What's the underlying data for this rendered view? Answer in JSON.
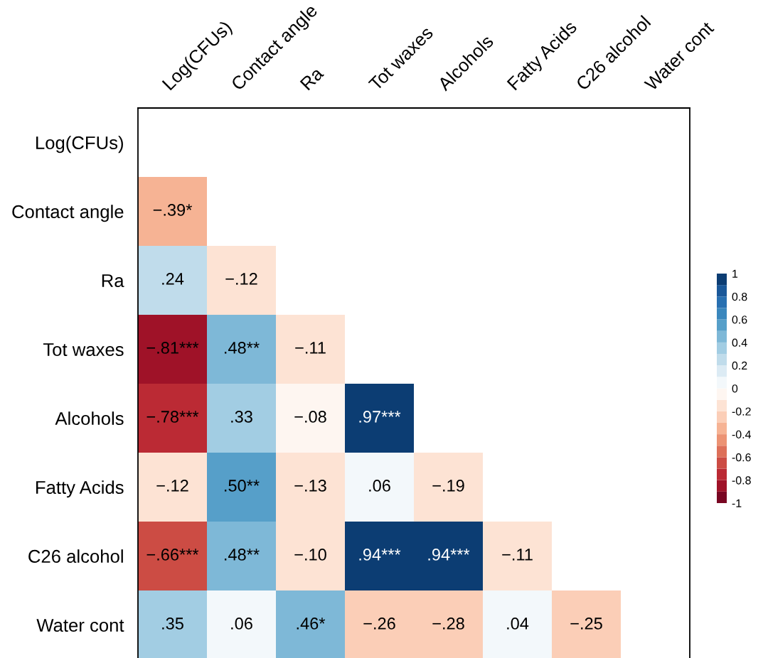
{
  "chart_data": {
    "type": "heatmap",
    "categories": [
      "Log(CFUs)",
      "Contact angle",
      "Ra",
      "Tot waxes",
      "Alcohols",
      "Fatty Acids",
      "C26 alcohol",
      "Water cont"
    ],
    "y_categories": [
      "Log(CFUs)",
      "Contact angle",
      "Ra",
      "Tot waxes",
      "Alcohols",
      "Fatty Acids",
      "C26 alcohol",
      "Water cont"
    ],
    "cells": [
      [
        null,
        null,
        null,
        null,
        null,
        null,
        null,
        null
      ],
      [
        -0.39,
        null,
        null,
        null,
        null,
        null,
        null,
        null
      ],
      [
        0.24,
        -0.12,
        null,
        null,
        null,
        null,
        null,
        null
      ],
      [
        -0.81,
        0.48,
        -0.11,
        null,
        null,
        null,
        null,
        null
      ],
      [
        -0.78,
        0.33,
        -0.08,
        0.97,
        null,
        null,
        null,
        null
      ],
      [
        -0.12,
        0.5,
        -0.13,
        0.06,
        -0.19,
        null,
        null,
        null
      ],
      [
        -0.66,
        0.48,
        -0.1,
        0.94,
        0.94,
        -0.11,
        null,
        null
      ],
      [
        0.35,
        0.06,
        0.46,
        -0.26,
        -0.28,
        0.04,
        -0.25,
        null
      ]
    ],
    "cell_labels": [
      [
        null,
        null,
        null,
        null,
        null,
        null,
        null,
        null
      ],
      [
        "−.39*",
        null,
        null,
        null,
        null,
        null,
        null,
        null
      ],
      [
        ".24",
        "−.12",
        null,
        null,
        null,
        null,
        null,
        null
      ],
      [
        "−.81***",
        ".48**",
        "−.11",
        null,
        null,
        null,
        null,
        null
      ],
      [
        "−.78***",
        ".33",
        "−.08",
        ".97***",
        null,
        null,
        null,
        null
      ],
      [
        "−.12",
        ".50**",
        "−.13",
        ".06",
        "−.19",
        null,
        null,
        null
      ],
      [
        "−.66***",
        ".48**",
        "−.10",
        ".94***",
        ".94***",
        "−.11",
        null,
        null
      ],
      [
        ".35",
        ".06",
        ".46*",
        "−.26",
        "−.28",
        ".04",
        "−.25",
        null
      ]
    ],
    "clim": [
      -1,
      1
    ],
    "cticks": [
      -1,
      -0.8,
      -0.6,
      -0.4,
      -0.2,
      0,
      0.2,
      0.4,
      0.6,
      0.8,
      1
    ]
  }
}
